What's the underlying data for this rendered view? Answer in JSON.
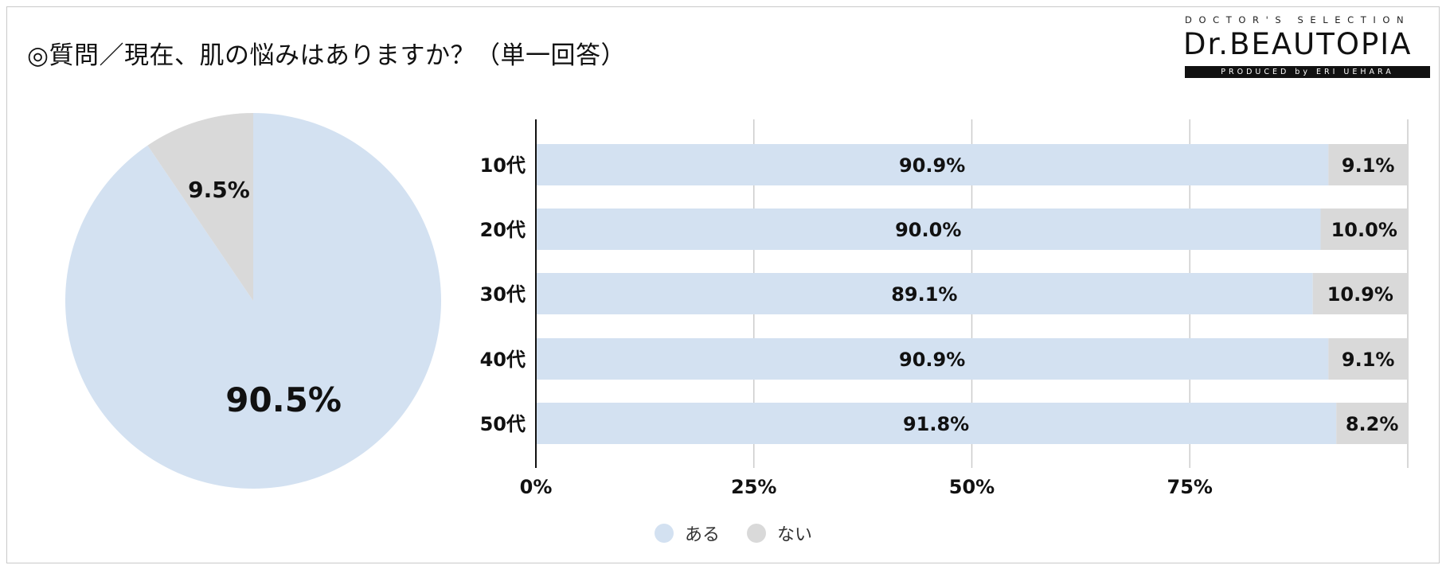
{
  "title": "◎質問／現在、肌の悩みはありますか？（単一回答）",
  "logo": {
    "top_text": "DOCTOR'S SELECTION",
    "main_text": "Dr.BEAUTOPIA",
    "bottom_text": "PRODUCED by ERI UEHARA"
  },
  "colors": {
    "yes": "#d3e1f1",
    "no": "#d9d9d9",
    "grid": "#cccccc",
    "axis": "#111111"
  },
  "legend": [
    {
      "label": "ある",
      "color": "#d3e1f1"
    },
    {
      "label": "ない",
      "color": "#d9d9d9"
    }
  ],
  "chart_data": [
    {
      "type": "pie",
      "categories": [
        "ある",
        "ない"
      ],
      "values": [
        90.5,
        9.5
      ],
      "labels": [
        "90.5%",
        "9.5%"
      ],
      "colors": [
        "#d3e1f1",
        "#d9d9d9"
      ]
    },
    {
      "type": "bar",
      "orientation": "horizontal",
      "stacked": true,
      "categories": [
        "10代",
        "20代",
        "30代",
        "40代",
        "50代"
      ],
      "series": [
        {
          "name": "ある",
          "values": [
            90.9,
            90.0,
            89.1,
            90.9,
            91.8
          ],
          "labels": [
            "90.9%",
            "90.0%",
            "89.1%",
            "90.9%",
            "91.8%"
          ],
          "color": "#d3e1f1"
        },
        {
          "name": "ない",
          "values": [
            9.1,
            10.0,
            10.9,
            9.1,
            8.2
          ],
          "labels": [
            "9.1%",
            "10.0%",
            "10.9%",
            "9.1%",
            "8.2%"
          ],
          "color": "#d9d9d9"
        }
      ],
      "xlim": [
        0,
        100
      ],
      "xticks": [
        0,
        25,
        50,
        75
      ],
      "xtick_labels": [
        "0%",
        "25%",
        "50%",
        "75%"
      ],
      "grid": true,
      "legend_position": "bottom"
    }
  ]
}
